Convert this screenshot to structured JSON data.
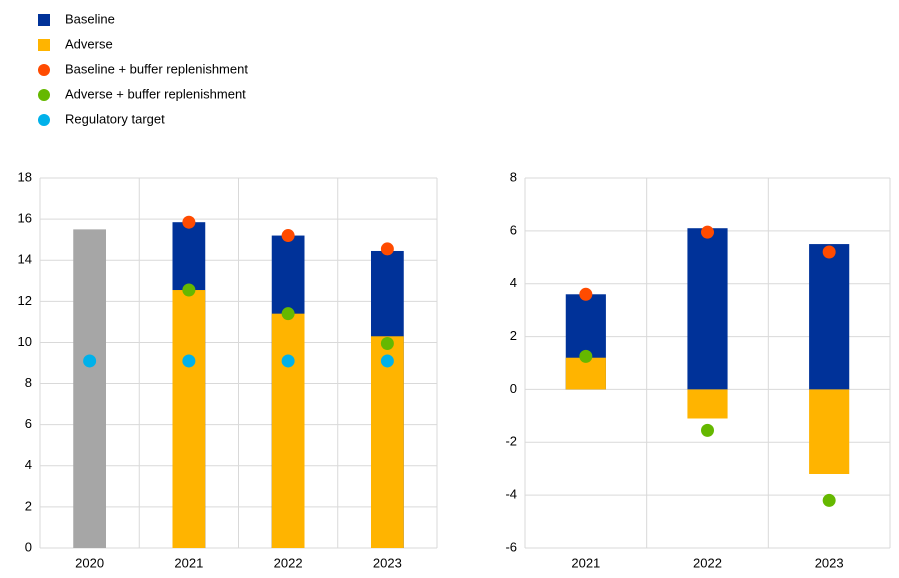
{
  "chart_data": [
    {
      "type": "bar",
      "categories": [
        "2020",
        "2021",
        "2022",
        "2023"
      ],
      "ylim": [
        0,
        18
      ],
      "yticks": [
        0,
        2,
        4,
        6,
        8,
        10,
        12,
        14,
        16,
        18
      ],
      "grid": true,
      "series": [
        {
          "color": "#a6a6a6",
          "kind": "bar",
          "values": [
            15.5,
            null,
            null,
            null
          ]
        },
        {
          "name": "Baseline",
          "color": "#003299",
          "kind": "bar",
          "values": [
            null,
            15.85,
            15.2,
            14.45
          ]
        },
        {
          "name": "Adverse",
          "color": "#ffb400",
          "kind": "bar",
          "values": [
            null,
            12.55,
            11.4,
            10.3
          ]
        },
        {
          "name": "Baseline + buffer replenishment",
          "color": "#ff4b00",
          "kind": "dot",
          "values": [
            null,
            15.85,
            15.2,
            14.55
          ]
        },
        {
          "name": "Adverse + buffer replenishment",
          "color": "#65b800",
          "kind": "dot",
          "values": [
            null,
            12.55,
            11.4,
            9.95
          ]
        },
        {
          "name": "Regulatory target",
          "color": "#00b1ea",
          "kind": "dot",
          "values": [
            9.1,
            9.1,
            9.1,
            9.1
          ]
        }
      ]
    },
    {
      "type": "bar",
      "categories": [
        "2021",
        "2022",
        "2023"
      ],
      "ylim": [
        -6,
        8
      ],
      "yticks": [
        -6,
        -4,
        -2,
        0,
        2,
        4,
        6,
        8
      ],
      "grid": true,
      "series": [
        {
          "color": "#003299",
          "kind": "bar",
          "values": [
            3.6,
            6.1,
            5.5
          ]
        },
        {
          "color": "#ffb400",
          "kind": "bar",
          "values": [
            1.2,
            -1.1,
            -3.2
          ]
        },
        {
          "color": "#ff4b00",
          "kind": "dot",
          "values": [
            3.6,
            5.95,
            5.2
          ]
        },
        {
          "color": "#65b800",
          "kind": "dot",
          "values": [
            1.25,
            -1.55,
            -4.2
          ]
        }
      ]
    }
  ]
}
